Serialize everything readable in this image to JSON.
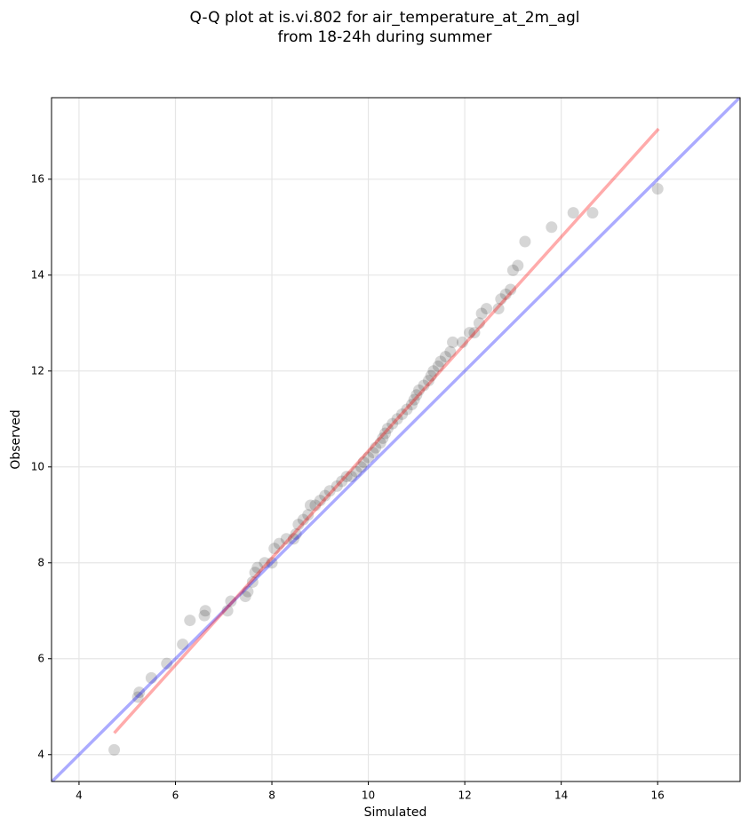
{
  "chart_data": {
    "type": "scatter",
    "title": [
      "Q-Q plot at is.vi.802 for air_temperature_at_2m_agl",
      "from 18-24h during summer"
    ],
    "x_label": "Simulated",
    "y_label": "Observed",
    "xlim": [
      3.43,
      17.71
    ],
    "ylim": [
      3.44,
      17.7
    ],
    "xticks": [
      4,
      6,
      8,
      10,
      12,
      14,
      16
    ],
    "yticks": [
      4,
      6,
      8,
      10,
      12,
      14,
      16
    ],
    "grid": true,
    "color": "#000000",
    "x": [
      4.73,
      5.22,
      5.25,
      5.5,
      5.82,
      6.15,
      6.3,
      6.6,
      6.62,
      7.08,
      7.15,
      7.45,
      7.5,
      7.6,
      7.65,
      7.7,
      7.85,
      8.0,
      8.05,
      8.15,
      8.3,
      8.45,
      8.5,
      8.55,
      8.65,
      8.75,
      8.8,
      8.9,
      9.0,
      9.1,
      9.2,
      9.35,
      9.45,
      9.55,
      9.65,
      9.75,
      9.85,
      9.9,
      10.0,
      10.1,
      10.15,
      10.25,
      10.3,
      10.35,
      10.4,
      10.5,
      10.6,
      10.7,
      10.8,
      10.9,
      10.95,
      11.0,
      11.05,
      11.15,
      11.25,
      11.3,
      11.35,
      11.45,
      11.5,
      11.6,
      11.7,
      11.75,
      11.95,
      12.1,
      12.2,
      12.3,
      12.35,
      12.45,
      12.7,
      12.75,
      12.85,
      12.95,
      13.0,
      13.1,
      13.25,
      13.8,
      14.25,
      14.65,
      16.0
    ],
    "values": [
      4.1,
      5.2,
      5.3,
      5.6,
      5.9,
      6.3,
      6.8,
      6.9,
      7.0,
      7.0,
      7.2,
      7.3,
      7.4,
      7.6,
      7.8,
      7.9,
      8.0,
      8.0,
      8.3,
      8.4,
      8.5,
      8.5,
      8.6,
      8.8,
      8.9,
      9.0,
      9.2,
      9.2,
      9.3,
      9.4,
      9.5,
      9.6,
      9.7,
      9.8,
      9.8,
      9.9,
      10.0,
      10.1,
      10.2,
      10.3,
      10.4,
      10.5,
      10.6,
      10.7,
      10.8,
      10.9,
      11.0,
      11.1,
      11.2,
      11.3,
      11.4,
      11.5,
      11.6,
      11.7,
      11.8,
      11.9,
      12.0,
      12.1,
      12.2,
      12.3,
      12.4,
      12.6,
      12.6,
      12.8,
      12.8,
      13.0,
      13.2,
      13.3,
      13.3,
      13.5,
      13.6,
      13.7,
      14.1,
      14.2,
      14.7,
      15.0,
      15.3,
      15.3,
      15.8
    ],
    "lines": [
      {
        "color": "#0000ff",
        "x": [
          3.43,
          17.71
        ],
        "y": [
          3.43,
          17.71
        ]
      },
      {
        "color": "#ff0000",
        "x": [
          4.73,
          16.02
        ],
        "y": [
          4.45,
          17.05
        ]
      }
    ]
  }
}
